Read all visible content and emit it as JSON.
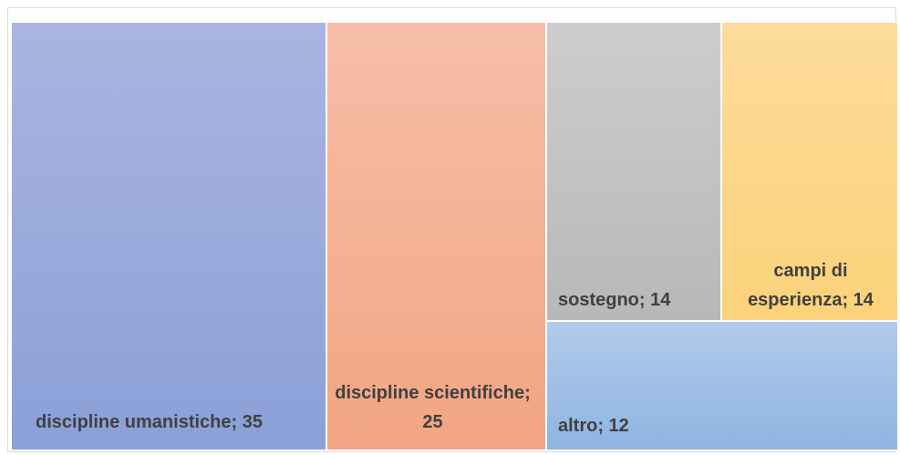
{
  "chart_data": {
    "type": "treemap",
    "title": "",
    "items": [
      {
        "name": "discipline umanistiche",
        "value": 35,
        "label": "discipline umanistiche; 35",
        "color": "#9aabdc"
      },
      {
        "name": "discipline scientifiche",
        "value": 25,
        "label": "discipline scientifiche; 25",
        "color": "#f4b197"
      },
      {
        "name": "sostegno",
        "value": 14,
        "label": "sostegno; 14",
        "color": "#c2c2c2"
      },
      {
        "name": "campi di esperienza",
        "value": 14,
        "label": "campi di esperienza; 14",
        "color": "#fcd78a"
      },
      {
        "name": "altro",
        "value": 12,
        "label": "altro; 12",
        "color": "#a0bfe6"
      }
    ],
    "legend": "none"
  }
}
